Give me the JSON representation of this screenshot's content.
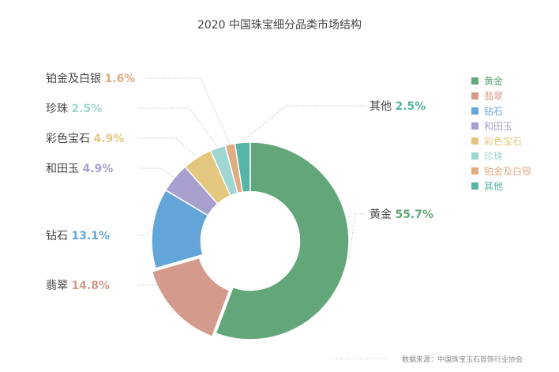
{
  "chart_data": {
    "type": "pie",
    "title": "2020 中国珠宝细分品类市场结构",
    "inner_radius_ratio": 0.5,
    "exploded_slice": "翡翠",
    "legend_position": "right",
    "slices": [
      {
        "name": "黄金",
        "value": 55.7,
        "label": "55.7%",
        "color": "#63a67a"
      },
      {
        "name": "翡翠",
        "value": 14.8,
        "label": "14.8%",
        "color": "#d49a8c"
      },
      {
        "name": "钻石",
        "value": 13.1,
        "label": "13.1%",
        "color": "#62a6d9"
      },
      {
        "name": "和田玉",
        "value": 4.9,
        "label": "4.9%",
        "color": "#a99fcf"
      },
      {
        "name": "彩色宝石",
        "value": 4.9,
        "label": "4.9%",
        "color": "#e3c77f"
      },
      {
        "name": "珍珠",
        "value": 2.5,
        "label": "2.5%",
        "color": "#9fd6d2"
      },
      {
        "name": "铂金及白银",
        "value": 1.6,
        "label": "1.6%",
        "color": "#e0ac82"
      },
      {
        "name": "其他",
        "value": 2.5,
        "label": "2.5%",
        "color": "#56b5a6"
      }
    ],
    "legend": [
      "黄金",
      "翡翠",
      "钻石",
      "和田玉",
      "彩色宝石",
      "珍珠",
      "铂金及白银",
      "其他"
    ]
  },
  "source": "数据来源：中国珠宝玉石首饰行业协会"
}
